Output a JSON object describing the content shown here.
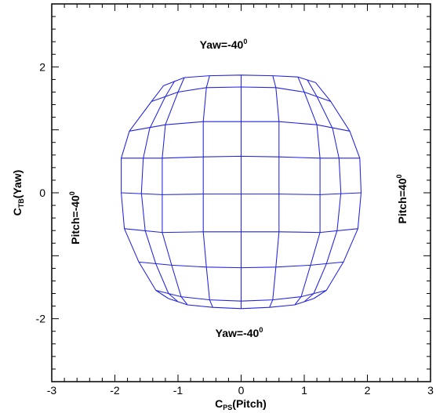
{
  "chart_data": {
    "type": "line",
    "title": "",
    "xlabel": "C_PS(Pitch)",
    "ylabel": "C_TB(Yaw)",
    "xlabel_parts": {
      "main": "C",
      "sub": "PS",
      "rest": "(Pitch)"
    },
    "ylabel_parts": {
      "main": "C",
      "sub": "TB",
      "rest": "(Yaw)"
    },
    "xlim": [
      -3,
      3
    ],
    "ylim": [
      -3,
      3
    ],
    "x_ticks": [
      -3,
      -2,
      -1,
      0,
      1,
      2,
      3
    ],
    "y_ticks": [
      -2,
      0,
      2
    ],
    "grid": false,
    "line_color": "#2222e0",
    "annotations": {
      "top": {
        "base": "Yaw=-40",
        "sup": "0"
      },
      "bottom": {
        "base": "Yaw=-40",
        "sup": "0"
      },
      "left": {
        "base": "Pitch=-40",
        "sup": "0"
      },
      "right": {
        "base": "Pitch=40",
        "sup": "0"
      }
    },
    "series": [
      {
        "values": [
          [
            -1.23,
            1.7
          ],
          [
            -0.9,
            1.83
          ],
          [
            -0.5,
            1.86
          ],
          [
            0,
            1.87
          ],
          [
            0.5,
            1.86
          ],
          [
            0.9,
            1.84
          ],
          [
            1.18,
            1.75
          ]
        ]
      },
      {
        "values": [
          [
            -1.42,
            1.45
          ],
          [
            -1.0,
            1.6
          ],
          [
            -0.55,
            1.67
          ],
          [
            0,
            1.68
          ],
          [
            0.55,
            1.67
          ],
          [
            1.0,
            1.6
          ],
          [
            1.42,
            1.45
          ]
        ]
      },
      {
        "values": [
          [
            -1.77,
            0.98
          ],
          [
            -1.2,
            1.08
          ],
          [
            -0.6,
            1.13
          ],
          [
            0,
            1.13
          ],
          [
            0.6,
            1.13
          ],
          [
            1.2,
            1.08
          ],
          [
            1.72,
            0.98
          ]
        ]
      },
      {
        "values": [
          [
            -1.9,
            0.55
          ],
          [
            -1.25,
            0.55
          ],
          [
            -0.6,
            0.57
          ],
          [
            0,
            0.58
          ],
          [
            0.6,
            0.57
          ],
          [
            1.25,
            0.55
          ],
          [
            1.88,
            0.55
          ]
        ]
      },
      {
        "values": [
          [
            -1.9,
            0.0
          ],
          [
            -1.25,
            -0.03
          ],
          [
            -0.6,
            -0.02
          ],
          [
            0,
            -0.02
          ],
          [
            0.6,
            -0.02
          ],
          [
            1.25,
            -0.03
          ],
          [
            1.9,
            0.0
          ]
        ]
      },
      {
        "values": [
          [
            -1.85,
            -0.57
          ],
          [
            -1.25,
            -0.63
          ],
          [
            -0.6,
            -0.62
          ],
          [
            0,
            -0.62
          ],
          [
            0.6,
            -0.62
          ],
          [
            1.25,
            -0.63
          ],
          [
            1.85,
            -0.57
          ]
        ]
      },
      {
        "values": [
          [
            -1.62,
            -1.1
          ],
          [
            -1.1,
            -1.15
          ],
          [
            -0.55,
            -1.18
          ],
          [
            0,
            -1.19
          ],
          [
            0.55,
            -1.18
          ],
          [
            1.1,
            -1.15
          ],
          [
            1.62,
            -1.1
          ]
        ]
      },
      {
        "values": [
          [
            -1.35,
            -1.55
          ],
          [
            -0.95,
            -1.65
          ],
          [
            -0.5,
            -1.7
          ],
          [
            0,
            -1.72
          ],
          [
            0.5,
            -1.7
          ],
          [
            0.95,
            -1.65
          ],
          [
            1.35,
            -1.55
          ]
        ]
      },
      {
        "values": [
          [
            -1.15,
            -1.68
          ],
          [
            -0.85,
            -1.78
          ],
          [
            -0.45,
            -1.82
          ],
          [
            0,
            -1.84
          ],
          [
            0.45,
            -1.82
          ],
          [
            0.85,
            -1.78
          ],
          [
            1.15,
            -1.68
          ]
        ]
      },
      {
        "values": [
          [
            -1.23,
            1.7
          ],
          [
            -1.42,
            1.45
          ],
          [
            -1.77,
            0.98
          ],
          [
            -1.9,
            0.55
          ],
          [
            -1.9,
            0.0
          ],
          [
            -1.85,
            -0.57
          ],
          [
            -1.62,
            -1.1
          ],
          [
            -1.35,
            -1.55
          ],
          [
            -1.15,
            -1.68
          ]
        ]
      },
      {
        "values": [
          [
            -1.05,
            1.78
          ],
          [
            -1.2,
            1.53
          ],
          [
            -1.45,
            1.02
          ],
          [
            -1.55,
            0.55
          ],
          [
            -1.58,
            0.0
          ],
          [
            -1.52,
            -0.6
          ],
          [
            -1.35,
            -1.13
          ],
          [
            -1.15,
            -1.6
          ],
          [
            -1.0,
            -1.73
          ]
        ]
      },
      {
        "values": [
          [
            -0.9,
            1.83
          ],
          [
            -1.0,
            1.6
          ],
          [
            -1.2,
            1.08
          ],
          [
            -1.25,
            0.55
          ],
          [
            -1.25,
            -0.03
          ],
          [
            -1.25,
            -0.63
          ],
          [
            -1.1,
            -1.15
          ],
          [
            -0.95,
            -1.65
          ],
          [
            -0.85,
            -1.78
          ]
        ]
      },
      {
        "values": [
          [
            -0.5,
            1.86
          ],
          [
            -0.55,
            1.67
          ],
          [
            -0.6,
            1.13
          ],
          [
            -0.6,
            0.57
          ],
          [
            -0.6,
            -0.02
          ],
          [
            -0.6,
            -0.62
          ],
          [
            -0.55,
            -1.18
          ],
          [
            -0.5,
            -1.7
          ],
          [
            -0.45,
            -1.82
          ]
        ]
      },
      {
        "values": [
          [
            0,
            1.87
          ],
          [
            0,
            1.68
          ],
          [
            0,
            1.13
          ],
          [
            0,
            0.58
          ],
          [
            0,
            -0.02
          ],
          [
            0,
            -0.62
          ],
          [
            0,
            -1.19
          ],
          [
            0,
            -1.72
          ],
          [
            0,
            -1.84
          ]
        ]
      },
      {
        "values": [
          [
            0.5,
            1.86
          ],
          [
            0.55,
            1.67
          ],
          [
            0.6,
            1.13
          ],
          [
            0.6,
            0.57
          ],
          [
            0.6,
            -0.02
          ],
          [
            0.6,
            -0.62
          ],
          [
            0.55,
            -1.18
          ],
          [
            0.5,
            -1.7
          ],
          [
            0.45,
            -1.82
          ]
        ]
      },
      {
        "values": [
          [
            0.9,
            1.84
          ],
          [
            1.0,
            1.6
          ],
          [
            1.2,
            1.08
          ],
          [
            1.25,
            0.55
          ],
          [
            1.25,
            -0.03
          ],
          [
            1.25,
            -0.63
          ],
          [
            1.1,
            -1.15
          ],
          [
            0.95,
            -1.65
          ],
          [
            0.85,
            -1.78
          ]
        ]
      },
      {
        "values": [
          [
            1.05,
            1.79
          ],
          [
            1.2,
            1.53
          ],
          [
            1.45,
            1.02
          ],
          [
            1.55,
            0.55
          ],
          [
            1.58,
            0.0
          ],
          [
            1.52,
            -0.6
          ],
          [
            1.35,
            -1.13
          ],
          [
            1.15,
            -1.6
          ],
          [
            1.0,
            -1.73
          ]
        ]
      },
      {
        "values": [
          [
            1.18,
            1.75
          ],
          [
            1.42,
            1.45
          ],
          [
            1.72,
            0.98
          ],
          [
            1.88,
            0.55
          ],
          [
            1.9,
            0.0
          ],
          [
            1.85,
            -0.57
          ],
          [
            1.62,
            -1.1
          ],
          [
            1.35,
            -1.55
          ],
          [
            1.15,
            -1.68
          ]
        ]
      }
    ]
  }
}
